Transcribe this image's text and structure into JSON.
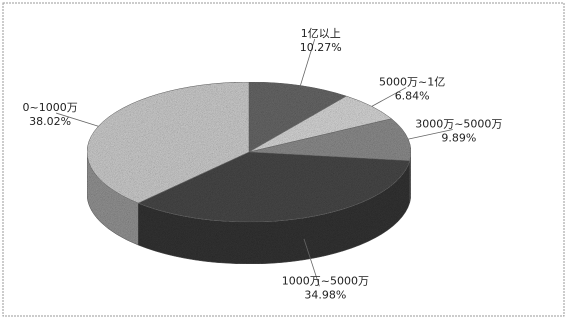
{
  "chart_data": {
    "type": "pie",
    "style": "3d-pie",
    "legend": "none",
    "slices": [
      {
        "name": "1亿以上",
        "value": 10.27,
        "label": "10.27%",
        "color": "#6a6a6a"
      },
      {
        "name": "5000万~1亿",
        "value": 6.84,
        "label": "6.84%",
        "color": "#dcdcdc"
      },
      {
        "name": "3000万~5000万",
        "value": 9.89,
        "label": "9.89%",
        "color": "#909090"
      },
      {
        "name": "1000万~5000万",
        "value": 34.98,
        "label": "34.98%",
        "color": "#4a4a4a"
      },
      {
        "name": "0~1000万",
        "value": 38.02,
        "label": "38.02%",
        "color": "#d2d2d2"
      }
    ]
  }
}
